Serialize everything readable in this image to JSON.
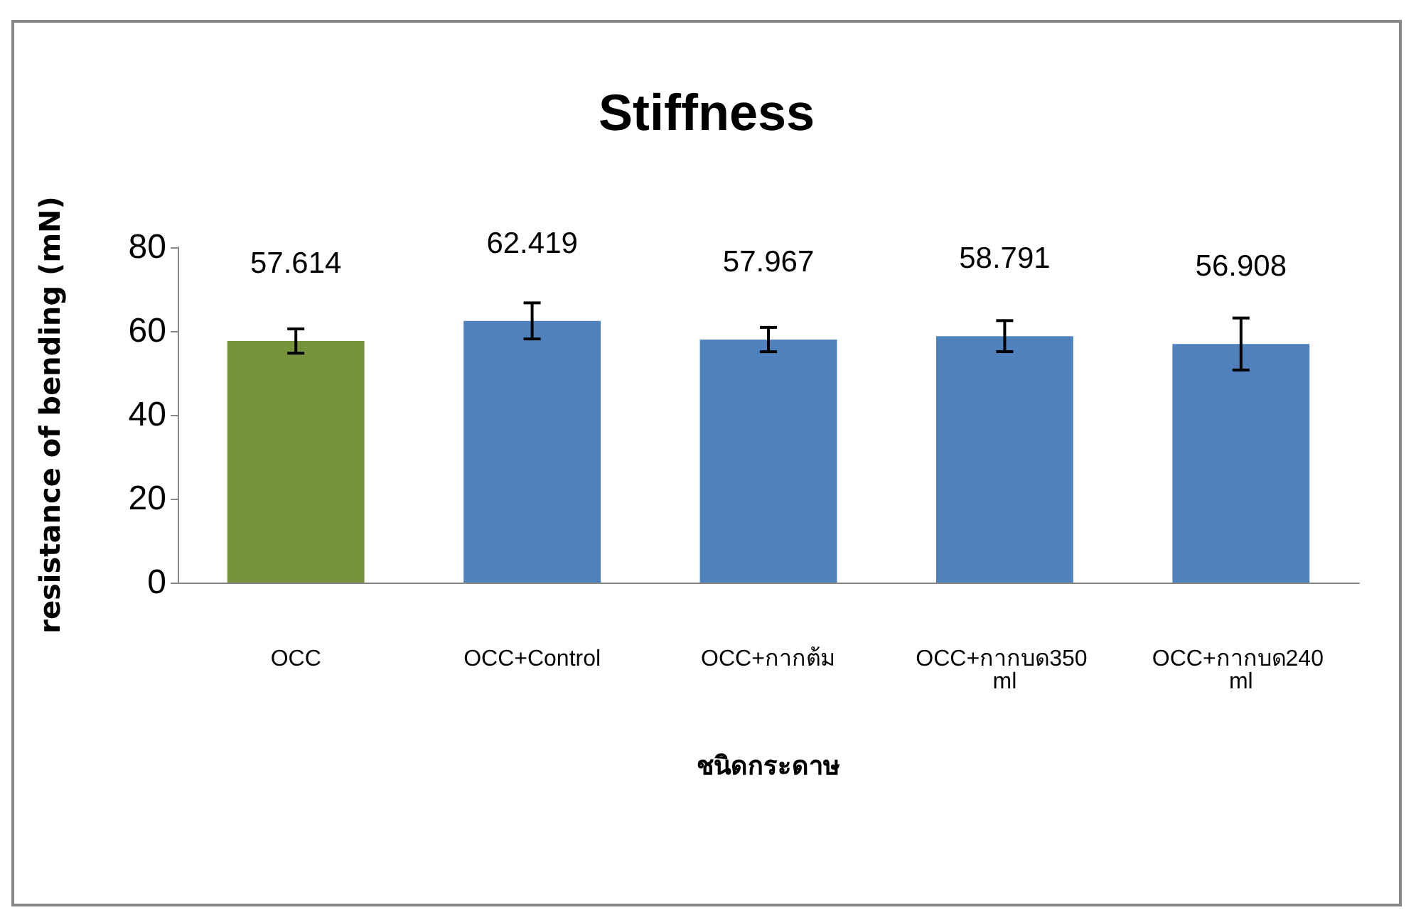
{
  "chart_data": {
    "type": "bar",
    "title": "Stiffness",
    "xlabel": "ชนิดกระดาษ",
    "ylabel": "resistance of bending (mN)",
    "categories": [
      "OCC",
      "OCC+Control",
      "OCC+กากต้ม",
      "OCC+กากบด350 ml",
      "OCC+กากบด240 ml"
    ],
    "values": [
      57.614,
      62.419,
      57.967,
      58.791,
      56.908
    ],
    "colors": [
      "#77933c",
      "#4f81bd",
      "#4f81bd",
      "#4f81bd",
      "#4f81bd"
    ],
    "errors": [
      2.9,
      4.3,
      2.9,
      3.7,
      6.2
    ],
    "data_labels": true,
    "ylim": [
      0,
      80
    ],
    "yticks": [
      0,
      20,
      40,
      60,
      80
    ],
    "grid": false
  }
}
